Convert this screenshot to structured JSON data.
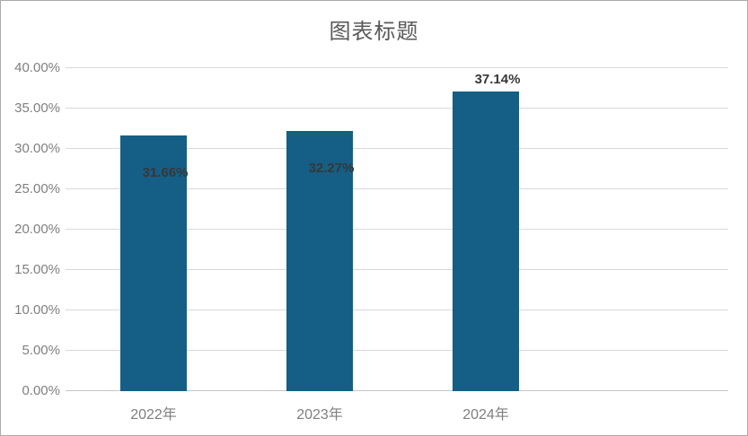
{
  "chart_data": {
    "type": "bar",
    "title": "图表标题",
    "categories": [
      "2022年",
      "2023年",
      "2024年"
    ],
    "values": [
      31.66,
      32.27,
      37.14
    ],
    "data_labels": [
      "31.66%",
      "32.27%",
      "37.14%"
    ],
    "label_positions": [
      "inside",
      "inside",
      "outside"
    ],
    "y_ticks": [
      "0.00%",
      "5.00%",
      "10.00%",
      "15.00%",
      "20.00%",
      "25.00%",
      "30.00%",
      "35.00%",
      "40.00%"
    ],
    "ylim": [
      0,
      40
    ],
    "xlabel": "",
    "ylabel": "",
    "grid": true,
    "legend": "none",
    "bar_color": "#155E86",
    "title_color": "#595959",
    "axis_label_color": "#7F7F7F",
    "data_label_color": "#373737",
    "gridline_color": "#D9D9D9",
    "axis_line_color": "#C6C6C6"
  }
}
